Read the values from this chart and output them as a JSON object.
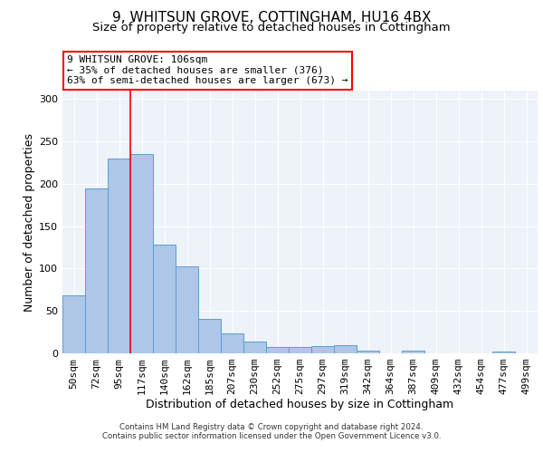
{
  "title1": "9, WHITSUN GROVE, COTTINGHAM, HU16 4BX",
  "title2": "Size of property relative to detached houses in Cottingham",
  "xlabel": "Distribution of detached houses by size in Cottingham",
  "ylabel": "Number of detached properties",
  "categories": [
    "50sqm",
    "72sqm",
    "95sqm",
    "117sqm",
    "140sqm",
    "162sqm",
    "185sqm",
    "207sqm",
    "230sqm",
    "252sqm",
    "275sqm",
    "297sqm",
    "319sqm",
    "342sqm",
    "364sqm",
    "387sqm",
    "409sqm",
    "432sqm",
    "454sqm",
    "477sqm",
    "499sqm"
  ],
  "values": [
    68,
    195,
    230,
    235,
    128,
    103,
    41,
    24,
    14,
    8,
    8,
    9,
    10,
    3,
    0,
    3,
    0,
    0,
    0,
    2,
    0
  ],
  "bar_color": "#aec6e8",
  "bar_edge_color": "#5a9fd4",
  "annotation_text": "9 WHITSUN GROVE: 106sqm\n← 35% of detached houses are smaller (376)\n63% of semi-detached houses are larger (673) →",
  "annotation_box_color": "white",
  "annotation_box_edge_color": "red",
  "ylim": [
    0,
    310
  ],
  "title1_fontsize": 11,
  "title2_fontsize": 9.5,
  "xlabel_fontsize": 9,
  "ylabel_fontsize": 9,
  "tick_fontsize": 8,
  "annot_fontsize": 8,
  "footer1": "Contains HM Land Registry data © Crown copyright and database right 2024.",
  "footer2": "Contains public sector information licensed under the Open Government Licence v3.0.",
  "background_color": "#eef2f9",
  "grid_color": "white"
}
